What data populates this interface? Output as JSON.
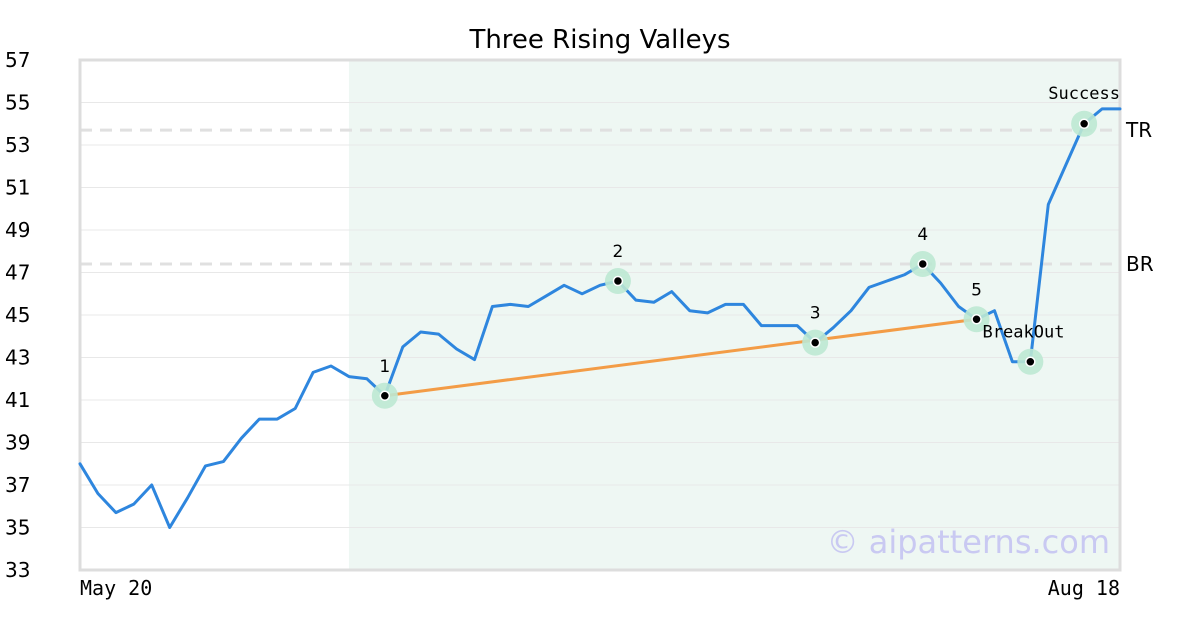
{
  "chart_data": {
    "type": "line",
    "title": "Three Rising Valleys",
    "xlabel": "",
    "ylabel": "",
    "ylim": [
      33,
      57
    ],
    "yticks": [
      33,
      35,
      37,
      39,
      41,
      43,
      45,
      47,
      49,
      51,
      53,
      55,
      57
    ],
    "x_tick_labels": [
      "May 20",
      "Aug 18"
    ],
    "grid": "horizontal",
    "colors": {
      "price": "#2e86de",
      "support": "#f39c46",
      "pattern_zone": "#eef7f3",
      "marker_halo": "#bde8d3",
      "reference_line": "#e0e0e0",
      "frame": "#dddddd",
      "gridline": "#e8e8e8"
    },
    "series": [
      {
        "values": [
          38.0,
          36.6,
          35.7,
          36.1,
          37.0,
          35.0,
          36.4,
          37.9,
          38.1,
          39.2,
          40.1,
          40.1,
          40.6,
          42.3,
          42.6,
          42.1,
          42.0,
          41.2,
          43.5,
          44.2,
          44.1,
          43.4,
          42.9,
          45.4,
          45.5,
          45.4,
          45.9,
          46.4,
          46.0,
          46.4,
          46.6,
          45.7,
          45.6,
          46.1,
          45.2,
          45.1,
          45.5,
          45.5,
          44.5,
          44.5,
          44.5,
          43.7,
          44.4,
          45.2,
          46.3,
          46.6,
          46.9,
          47.4,
          46.5,
          45.4,
          44.8,
          45.2,
          42.8,
          42.8,
          50.2,
          52.1,
          54.0,
          54.7,
          54.7
        ]
      }
    ],
    "pattern_zone": {
      "start_index": 15,
      "end_index": 58
    },
    "reference_lines": [
      {
        "label": "TR",
        "value": 53.7
      },
      {
        "label": "BR",
        "value": 47.4
      }
    ],
    "support_line": {
      "from_index": 17,
      "to_index": 50
    },
    "markers": [
      {
        "index": 17,
        "label": "1",
        "label_pos": "above"
      },
      {
        "index": 30,
        "label": "2",
        "label_pos": "above"
      },
      {
        "index": 41,
        "label": "3",
        "label_pos": "above"
      },
      {
        "index": 47,
        "label": "4",
        "label_pos": "above"
      },
      {
        "index": 50,
        "label": "5",
        "label_pos": "above"
      },
      {
        "index": 53,
        "label": "",
        "label_pos": "above"
      },
      {
        "index": 56,
        "label": "",
        "label_pos": "above"
      }
    ],
    "annotations": [
      {
        "text": "BreakOut",
        "index": 50
      },
      {
        "text": "Success",
        "index": 56
      }
    ],
    "watermark": "© aipatterns.com"
  }
}
